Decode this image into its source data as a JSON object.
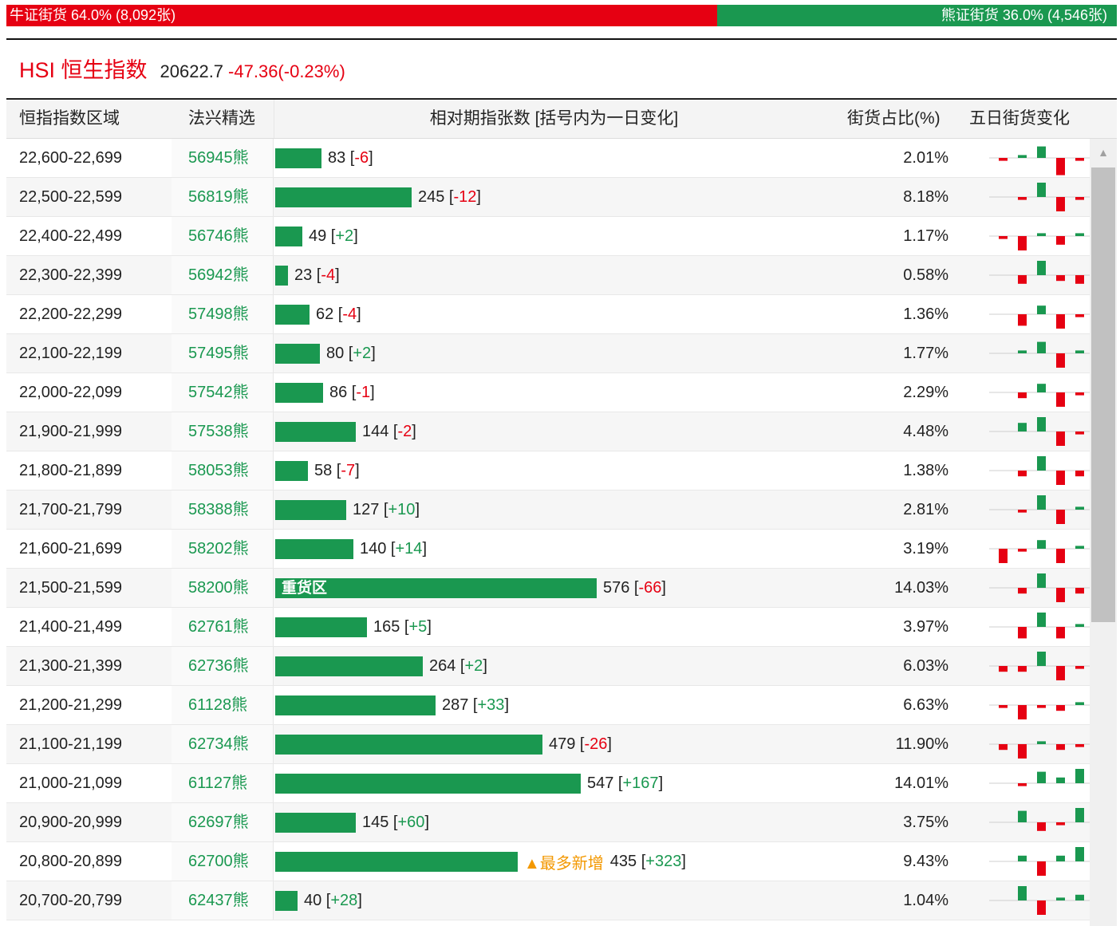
{
  "ratio": {
    "bull_label": "牛证街货 64.0% (8,092张)",
    "bear_label": "熊证街货 36.0% (4,546张)",
    "bull_fraction": 0.64,
    "bull_color": "#e60012",
    "bear_color": "#1a9850"
  },
  "index": {
    "name": "HSI 恒生指数",
    "price": "20622.7",
    "change": "-47.36(-0.23%)"
  },
  "table": {
    "headers": [
      "恒指指数区域",
      "法兴精选",
      "相对期指张数 [括号内为一日变化]",
      "街货占比(%)",
      "五日街货变化"
    ],
    "bar_max": 576,
    "rows": [
      {
        "range": "22,600-22,699",
        "code": "56945熊",
        "count": 83,
        "count_text": "83",
        "delta": "-6",
        "pct": "2.01%",
        "spark": [
          -1,
          1,
          4,
          -6,
          -1
        ]
      },
      {
        "range": "22,500-22,599",
        "code": "56819熊",
        "count": 245,
        "count_text": "245",
        "delta": "-12",
        "pct": "8.18%",
        "spark": [
          0,
          -1,
          5,
          -5,
          -1
        ]
      },
      {
        "range": "22,400-22,499",
        "code": "56746熊",
        "count": 49,
        "count_text": "49",
        "delta": "+2",
        "pct": "1.17%",
        "spark": [
          -1,
          -5,
          1,
          -3,
          1
        ]
      },
      {
        "range": "22,300-22,399",
        "code": "56942熊",
        "count": 23,
        "count_text": "23",
        "delta": "-4",
        "pct": "0.58%",
        "spark": [
          0,
          -3,
          5,
          -2,
          -3
        ]
      },
      {
        "range": "22,200-22,299",
        "code": "57498熊",
        "count": 62,
        "count_text": "62",
        "delta": "-4",
        "pct": "1.36%",
        "spark": [
          0,
          -4,
          3,
          -5,
          -1
        ]
      },
      {
        "range": "22,100-22,199",
        "code": "57495熊",
        "count": 80,
        "count_text": "80",
        "delta": "+2",
        "pct": "1.77%",
        "spark": [
          0,
          1,
          4,
          -5,
          1
        ]
      },
      {
        "range": "22,000-22,099",
        "code": "57542熊",
        "count": 86,
        "count_text": "86",
        "delta": "-1",
        "pct": "2.29%",
        "spark": [
          0,
          -2,
          3,
          -5,
          -1
        ]
      },
      {
        "range": "21,900-21,999",
        "code": "57538熊",
        "count": 144,
        "count_text": "144",
        "delta": "-2",
        "pct": "4.48%",
        "spark": [
          0,
          3,
          5,
          -5,
          -1
        ]
      },
      {
        "range": "21,800-21,899",
        "code": "58053熊",
        "count": 58,
        "count_text": "58",
        "delta": "-7",
        "pct": "1.38%",
        "spark": [
          0,
          -2,
          5,
          -5,
          -2
        ]
      },
      {
        "range": "21,700-21,799",
        "code": "58388熊",
        "count": 127,
        "count_text": "127",
        "delta": "+10",
        "pct": "2.81%",
        "spark": [
          0,
          -1,
          5,
          -5,
          1
        ]
      },
      {
        "range": "21,600-21,699",
        "code": "58202熊",
        "count": 140,
        "count_text": "140",
        "delta": "+14",
        "pct": "3.19%",
        "spark": [
          -5,
          -1,
          3,
          -5,
          1
        ]
      },
      {
        "range": "21,500-21,599",
        "code": "58200熊",
        "count": 576,
        "count_text": "576",
        "delta": "-66",
        "pct": "14.03%",
        "spark": [
          0,
          -2,
          5,
          -5,
          -2
        ],
        "bar_label": "重货区"
      },
      {
        "range": "21,400-21,499",
        "code": "62761熊",
        "count": 165,
        "count_text": "165",
        "delta": "+5",
        "pct": "3.97%",
        "spark": [
          0,
          -4,
          5,
          -4,
          1
        ]
      },
      {
        "range": "21,300-21,399",
        "code": "62736熊",
        "count": 264,
        "count_text": "264",
        "delta": "+2",
        "pct": "6.03%",
        "spark": [
          -2,
          -2,
          5,
          -5,
          -1
        ]
      },
      {
        "range": "21,200-21,299",
        "code": "61128熊",
        "count": 287,
        "count_text": "287",
        "delta": "+33",
        "pct": "6.63%",
        "spark": [
          -1,
          -5,
          -1,
          -2,
          1
        ]
      },
      {
        "range": "21,100-21,199",
        "code": "62734熊",
        "count": 479,
        "count_text": "479",
        "delta": "-26",
        "pct": "11.90%",
        "spark": [
          -2,
          -5,
          1,
          -2,
          -1
        ]
      },
      {
        "range": "21,000-21,099",
        "code": "61127熊",
        "count": 547,
        "count_text": "547",
        "delta": "+167",
        "pct": "14.01%",
        "spark": [
          0,
          -1,
          4,
          2,
          5
        ]
      },
      {
        "range": "20,900-20,999",
        "code": "62697熊",
        "count": 145,
        "count_text": "145",
        "delta": "+60",
        "pct": "3.75%",
        "spark": [
          0,
          4,
          -3,
          -1,
          5
        ]
      },
      {
        "range": "20,800-20,899",
        "code": "62700熊",
        "count": 435,
        "count_text": "435",
        "delta": "+323",
        "pct": "9.43%",
        "spark": [
          0,
          2,
          -5,
          2,
          5
        ],
        "note": "▲最多新增"
      },
      {
        "range": "20,700-20,799",
        "code": "62437熊",
        "count": 40,
        "count_text": "40",
        "delta": "+28",
        "pct": "1.04%",
        "spark": [
          0,
          5,
          -5,
          1,
          2
        ]
      }
    ]
  },
  "scrollbar": {
    "up_icon": "▲"
  }
}
